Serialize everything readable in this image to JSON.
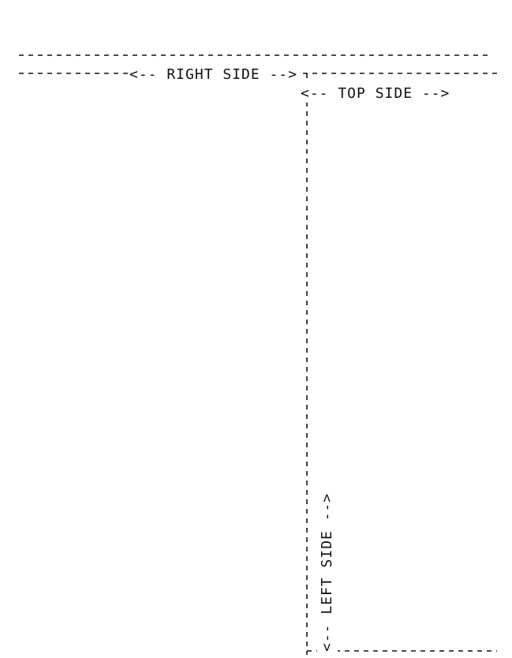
{
  "labels": {
    "right_side": "<-- RIGHT SIDE -->",
    "top_side": "<-- TOP SIDE -->",
    "left_side": "<-- LEFT SIDE -->"
  },
  "colors": {
    "line": "#111111",
    "background": "#ffffff"
  }
}
